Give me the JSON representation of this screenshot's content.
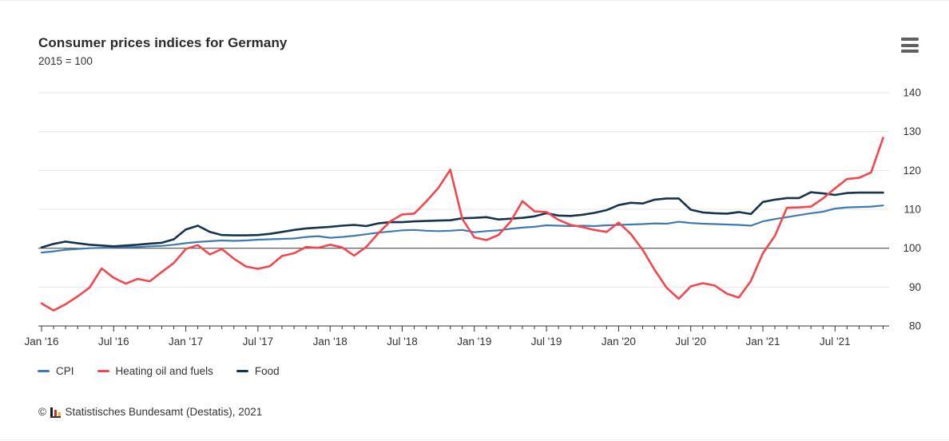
{
  "header": {
    "title": "Consumer prices indices for Germany",
    "subtitle": "2015 = 100"
  },
  "icons": {
    "menu": "hamburger-icon",
    "logo": "destatis-bar-chart-logo"
  },
  "chart_data": {
    "type": "line",
    "title": "Consumer prices indices for Germany",
    "subtitle": "2015 = 100",
    "x_start": "2016-01",
    "x_end": "2021-11",
    "x_frequency": "monthly",
    "x_tick_labels": [
      "Jan '16",
      "Jul '16",
      "Jan '17",
      "Jul '17",
      "Jan '18",
      "Jul '18",
      "Jan '19",
      "Jul '19",
      "Jan '20",
      "Jul '20",
      "Jan '21",
      "Jul '21"
    ],
    "y_ticks": [
      80,
      90,
      100,
      110,
      120,
      130,
      140
    ],
    "ylim": [
      80,
      140
    ],
    "baseline_value": 100,
    "grid": "horizontal",
    "legend_position": "bottom-left",
    "series": [
      {
        "name": "CPI",
        "color": "#3f7ab2",
        "values": [
          98.9,
          99.2,
          99.6,
          99.8,
          100.0,
          100.1,
          100.2,
          100.3,
          100.3,
          100.5,
          100.6,
          100.9,
          101.3,
          101.6,
          101.8,
          102.0,
          101.9,
          102.0,
          102.2,
          102.3,
          102.4,
          102.5,
          102.9,
          103.1,
          102.7,
          102.9,
          103.2,
          103.6,
          104.0,
          104.3,
          104.6,
          104.7,
          104.5,
          104.4,
          104.5,
          104.7,
          104.1,
          104.4,
          104.6,
          105.0,
          105.3,
          105.5,
          105.9,
          105.8,
          105.7,
          105.8,
          105.7,
          105.9,
          106.0,
          106.1,
          106.2,
          106.4,
          106.3,
          106.8,
          106.5,
          106.3,
          106.2,
          106.1,
          106.0,
          105.8,
          106.9,
          107.5,
          108.0,
          108.5,
          109.0,
          109.4,
          110.2,
          110.5,
          110.6,
          110.7,
          111.0
        ]
      },
      {
        "name": "Heating oil and fuels",
        "color": "#f4464e",
        "values": [
          85.8,
          84.0,
          85.6,
          87.6,
          89.9,
          94.8,
          92.4,
          90.9,
          92.1,
          91.5,
          93.9,
          96.2,
          99.8,
          100.8,
          98.4,
          99.8,
          97.3,
          95.3,
          94.7,
          95.4,
          98.0,
          98.7,
          100.3,
          100.1,
          100.9,
          100.2,
          98.1,
          100.3,
          103.8,
          106.9,
          108.7,
          108.9,
          112.0,
          115.5,
          120.2,
          107.5,
          102.8,
          102.1,
          103.4,
          106.8,
          112.1,
          109.5,
          109.3,
          107.3,
          106.0,
          105.4,
          104.7,
          104.2,
          106.6,
          103.7,
          99.6,
          94.4,
          89.8,
          87.0,
          90.2,
          91.0,
          90.4,
          88.3,
          87.3,
          91.6,
          98.7,
          103.2,
          110.4,
          110.5,
          110.7,
          112.8,
          115.4,
          117.8,
          118.1,
          119.5,
          128.4
        ]
      },
      {
        "name": "Food",
        "color": "#17344f",
        "values": [
          100.2,
          101.1,
          101.7,
          101.3,
          100.9,
          100.7,
          100.5,
          100.7,
          100.9,
          101.2,
          101.4,
          102.3,
          104.8,
          105.8,
          104.2,
          103.4,
          103.3,
          103.3,
          103.4,
          103.7,
          104.2,
          104.7,
          105.1,
          105.3,
          105.5,
          105.8,
          106.0,
          105.7,
          106.4,
          106.7,
          106.7,
          106.9,
          107.0,
          107.1,
          107.2,
          107.7,
          107.8,
          108.0,
          107.4,
          107.6,
          107.8,
          108.2,
          109.0,
          108.4,
          108.3,
          108.6,
          109.1,
          109.8,
          111.1,
          111.7,
          111.5,
          112.5,
          112.8,
          112.8,
          109.9,
          109.2,
          109.0,
          108.9,
          109.3,
          108.8,
          111.9,
          112.5,
          112.9,
          112.9,
          114.4,
          114.1,
          113.7,
          114.2,
          114.3,
          114.3,
          114.3
        ]
      }
    ]
  },
  "footer": {
    "copyright": "©",
    "source": "Statistisches Bundesamt (Destatis), 2021"
  }
}
